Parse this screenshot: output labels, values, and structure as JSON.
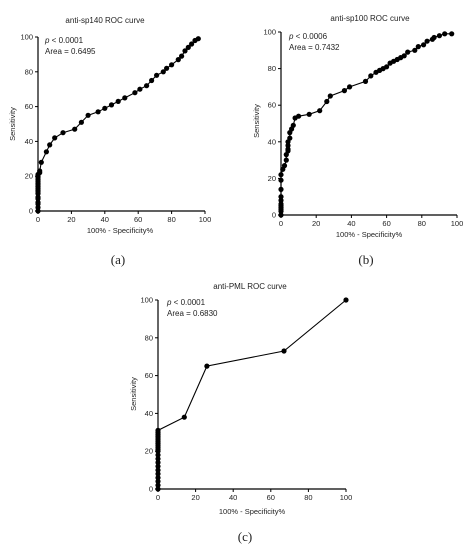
{
  "chart_data": [
    {
      "type": "line",
      "title": "anti-sp140 ROC curve",
      "xlabel": "100% - Specificity%",
      "ylabel": "Sensitivity",
      "xlim": [
        0,
        100
      ],
      "ylim": [
        0,
        100
      ],
      "xticks": [
        "0",
        "20",
        "40",
        "60",
        "80",
        "100"
      ],
      "yticks": [
        "0",
        "20",
        "40",
        "60",
        "80",
        "100"
      ],
      "annotation_p_label": "p",
      "annotation_p_value": " < 0.0001",
      "annotation_area": "Area = 0.6495",
      "panel_label": "(a)",
      "x": [
        0,
        0,
        0,
        0,
        0,
        0,
        0,
        0,
        0,
        0,
        0,
        0,
        0,
        0,
        0,
        0,
        0,
        0,
        1,
        1,
        2,
        5,
        7,
        10,
        15,
        22,
        26,
        30,
        36,
        40,
        44,
        48,
        52,
        58,
        61,
        65,
        68,
        71,
        75,
        77,
        80,
        84,
        86,
        88,
        90,
        92,
        94,
        96
      ],
      "y": [
        0,
        2,
        4,
        5,
        7,
        8,
        10,
        11,
        12,
        13,
        14,
        15,
        16,
        17,
        18,
        19,
        20,
        21,
        22,
        23,
        28,
        34,
        38,
        42,
        45,
        47,
        51,
        55,
        57,
        59,
        61,
        63,
        65,
        68,
        70,
        72,
        75,
        78,
        80,
        82,
        84,
        87,
        89,
        92,
        94,
        96,
        98,
        99
      ]
    },
    {
      "type": "line",
      "title": "anti-sp100 ROC curve",
      "xlabel": "100% - Specificity%",
      "ylabel": "Sensitivity",
      "xlim": [
        0,
        100
      ],
      "ylim": [
        0,
        100
      ],
      "xticks": [
        "0",
        "20",
        "40",
        "60",
        "80",
        "100"
      ],
      "yticks": [
        "0",
        "20",
        "40",
        "60",
        "80",
        "100"
      ],
      "annotation_p_label": "p",
      "annotation_p_value": " < 0.0006",
      "annotation_area": "Area = 0.7432",
      "panel_label": "(b)",
      "x": [
        0,
        0,
        0,
        0,
        0,
        0,
        0,
        0,
        0,
        0,
        0,
        1,
        2,
        3,
        3,
        4,
        4,
        4,
        4,
        5,
        5,
        6,
        7,
        8,
        10,
        16,
        22,
        26,
        28,
        36,
        39,
        48,
        51,
        54,
        56,
        58,
        60,
        62,
        64,
        66,
        68,
        70,
        72,
        76,
        78,
        81,
        83,
        86,
        87,
        90,
        93,
        97
      ],
      "y": [
        0,
        2,
        3,
        4,
        5,
        6,
        8,
        10,
        14,
        19,
        22,
        25,
        27,
        30,
        33,
        35,
        36,
        38,
        40,
        42,
        45,
        47,
        49,
        53,
        54,
        55,
        57,
        62,
        65,
        68,
        70,
        73,
        76,
        78,
        79,
        80,
        81,
        83,
        84,
        85,
        86,
        87,
        89,
        90,
        92,
        93,
        95,
        96,
        97,
        98,
        99,
        99
      ]
    },
    {
      "type": "line",
      "title": "anti-PML ROC curve",
      "xlabel": "100% - Specificity%",
      "ylabel": "Sensitivity",
      "xlim": [
        0,
        100
      ],
      "ylim": [
        0,
        100
      ],
      "xticks": [
        "0",
        "20",
        "40",
        "60",
        "80",
        "100"
      ],
      "yticks": [
        "0",
        "20",
        "40",
        "60",
        "80",
        "100"
      ],
      "annotation_p_label": "p",
      "annotation_p_value": " < 0.0001",
      "annotation_area": "Area = 0.6830",
      "panel_label": "(c)",
      "x": [
        0,
        0,
        0,
        0,
        0,
        0,
        0,
        0,
        0,
        0,
        0,
        0,
        0,
        0,
        0,
        0,
        0,
        0,
        0,
        0,
        0,
        0,
        14,
        26,
        67,
        100
      ],
      "y": [
        0,
        2,
        4,
        6,
        8,
        10,
        12,
        14,
        16,
        18,
        20,
        21,
        22,
        23,
        24,
        25,
        26,
        27,
        28,
        29,
        30,
        31,
        38,
        65,
        73,
        100
      ]
    }
  ]
}
